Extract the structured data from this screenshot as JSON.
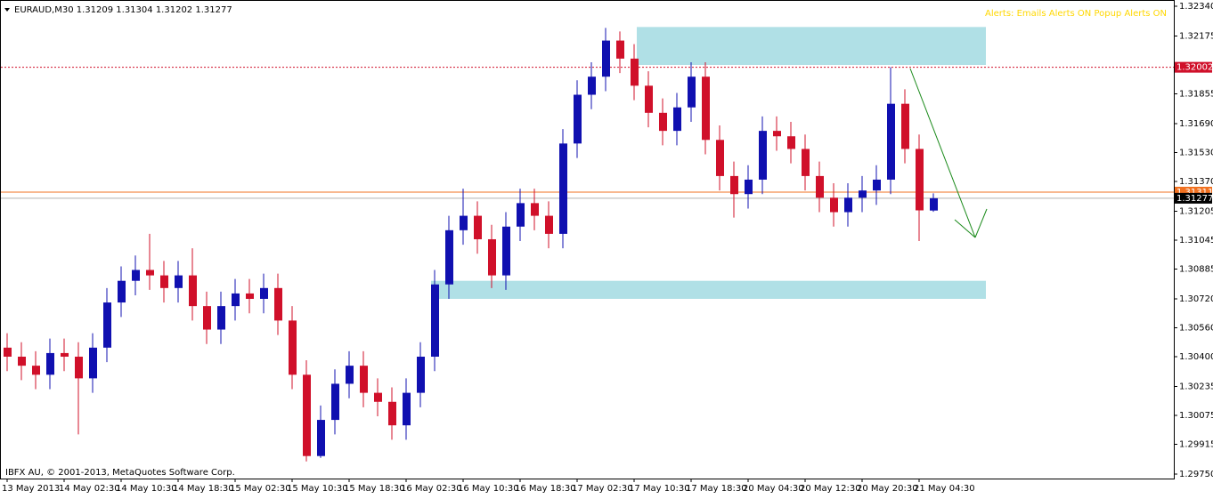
{
  "chart_data": {
    "type": "candlestick",
    "title": "EURAUD,M30  1.31209 1.31304 1.31202 1.31277",
    "alerts": "Alerts:  Emails Alerts ON   Popup Alerts ON",
    "footer": "IBFX AU, © 2001-2013, MetaQuotes Software Corp.",
    "up_color": "#1010b0",
    "down_color": "#d0102a",
    "categories": [
      "13 May 2013",
      null,
      null,
      null,
      "14 May 02:30",
      null,
      null,
      null,
      "14 May 10:30",
      null,
      null,
      null,
      "14 May 18:30",
      null,
      null,
      null,
      "15 May 02:30",
      null,
      null,
      null,
      "15 May 10:30",
      null,
      null,
      null,
      "15 May 18:30",
      null,
      null,
      null,
      "16 May 02:30",
      null,
      null,
      null,
      "16 May 10:30",
      null,
      null,
      null,
      "16 May 18:30",
      null,
      null,
      null,
      "17 May 02:30",
      null,
      null,
      null,
      "17 May 10:30",
      null,
      null,
      null,
      "17 May 18:30",
      null,
      null,
      null,
      "20 May 04:30",
      null,
      null,
      null,
      "20 May 12:30",
      null,
      null,
      null,
      "20 May 20:30",
      null,
      null,
      null,
      "21 May 04:30",
      null
    ],
    "open": [
      1.3045,
      1.304,
      1.3035,
      1.303,
      1.3042,
      1.304,
      1.3028,
      1.3045,
      1.307,
      1.3082,
      1.3088,
      1.3085,
      1.3078,
      1.3085,
      1.3068,
      1.3055,
      1.3068,
      1.3075,
      1.3072,
      1.3078,
      1.306,
      1.303,
      1.2985,
      1.3005,
      1.3025,
      1.3035,
      1.302,
      1.3015,
      1.3002,
      1.302,
      1.304,
      1.308,
      1.311,
      1.3118,
      1.3105,
      1.3085,
      1.3112,
      1.3125,
      1.3118,
      1.3108,
      1.3158,
      1.3185,
      1.3195,
      1.3215,
      1.3205,
      1.319,
      1.3175,
      1.3165,
      1.3178,
      1.3195,
      1.316,
      1.314,
      1.313,
      1.3138,
      1.3165,
      1.3162,
      1.3155,
      1.314,
      1.3128,
      1.312,
      1.3128,
      1.3132,
      1.3138,
      1.318,
      1.3155,
      1.31209
    ],
    "high": [
      1.3053,
      1.3048,
      1.3043,
      1.305,
      1.305,
      1.3048,
      1.3053,
      1.3078,
      1.309,
      1.3096,
      1.3108,
      1.3093,
      1.3093,
      1.31,
      1.3076,
      1.3076,
      1.3083,
      1.3083,
      1.3086,
      1.3086,
      1.3068,
      1.3038,
      1.3013,
      1.3033,
      1.3043,
      1.3043,
      1.3028,
      1.3023,
      1.3028,
      1.3048,
      1.3088,
      1.3118,
      1.3133,
      1.3126,
      1.3113,
      1.312,
      1.3133,
      1.3133,
      1.3126,
      1.3166,
      1.3193,
      1.3203,
      1.3222,
      1.322,
      1.3213,
      1.3198,
      1.3183,
      1.3186,
      1.3203,
      1.3203,
      1.3168,
      1.3148,
      1.3146,
      1.3173,
      1.3173,
      1.317,
      1.3163,
      1.3148,
      1.3136,
      1.3136,
      1.314,
      1.3146,
      1.32002,
      1.3188,
      1.3163,
      1.31304
    ],
    "low": [
      1.3032,
      1.3027,
      1.3022,
      1.3022,
      1.3032,
      1.2997,
      1.302,
      1.3037,
      1.3062,
      1.3074,
      1.3077,
      1.307,
      1.307,
      1.306,
      1.3047,
      1.3047,
      1.306,
      1.3064,
      1.3064,
      1.3052,
      1.3022,
      1.2982,
      1.2984,
      1.2997,
      1.3017,
      1.3012,
      1.3007,
      1.2994,
      1.2994,
      1.3012,
      1.3032,
      1.3072,
      1.3102,
      1.3097,
      1.3078,
      1.3077,
      1.3104,
      1.311,
      1.31,
      1.31,
      1.315,
      1.3177,
      1.3187,
      1.3197,
      1.3182,
      1.3167,
      1.3157,
      1.3157,
      1.317,
      1.3152,
      1.3132,
      1.3117,
      1.3122,
      1.313,
      1.3154,
      1.3147,
      1.3132,
      1.312,
      1.3112,
      1.3112,
      1.312,
      1.3124,
      1.313,
      1.3147,
      1.3104,
      1.31202
    ],
    "close": [
      1.304,
      1.3035,
      1.303,
      1.3042,
      1.304,
      1.3028,
      1.3045,
      1.307,
      1.3082,
      1.3088,
      1.3085,
      1.3078,
      1.3085,
      1.3068,
      1.3055,
      1.3068,
      1.3075,
      1.3072,
      1.3078,
      1.306,
      1.303,
      1.2985,
      1.3005,
      1.3025,
      1.3035,
      1.302,
      1.3015,
      1.3002,
      1.302,
      1.304,
      1.308,
      1.311,
      1.3118,
      1.3105,
      1.3085,
      1.3112,
      1.3125,
      1.3118,
      1.3108,
      1.3158,
      1.3185,
      1.3195,
      1.3215,
      1.3205,
      1.319,
      1.3175,
      1.3165,
      1.3178,
      1.3195,
      1.316,
      1.314,
      1.313,
      1.3138,
      1.3165,
      1.3162,
      1.3155,
      1.314,
      1.3128,
      1.312,
      1.3128,
      1.3132,
      1.3138,
      1.318,
      1.3155,
      1.3121,
      1.31277
    ],
    "ylim": [
      1.2975,
      1.3234
    ],
    "yticks": [
      {
        "value": 1.3234,
        "label": "1.32340"
      },
      1.32175,
      1.31855,
      {
        "value": 1.3169,
        "label": "1.31690"
      },
      {
        "value": 1.3153,
        "label": "1.31530"
      },
      {
        "value": 1.3137,
        "label": "1.31370"
      },
      1.31205,
      1.31045,
      1.30885,
      {
        "value": 1.3072,
        "label": "1.30720"
      },
      {
        "value": 1.3056,
        "label": "1.30560"
      },
      {
        "value": 1.304,
        "label": "1.30400"
      },
      1.30235,
      1.30075,
      1.29915,
      {
        "value": 1.2975,
        "label": "1.29750"
      }
    ],
    "hlines": [
      {
        "value": 1.32002,
        "color": "#d0102a"
      },
      {
        "value": 1.31311,
        "color": "#f07020"
      },
      {
        "value": 1.31277,
        "color": "#b0b0b0"
      }
    ],
    "zones": [
      {
        "top": 1.32225,
        "bottom": 1.32015,
        "color": "#b0e0e6"
      },
      {
        "top": 1.3082,
        "bottom": 1.3072,
        "color": "#b0e0e6"
      }
    ]
  }
}
